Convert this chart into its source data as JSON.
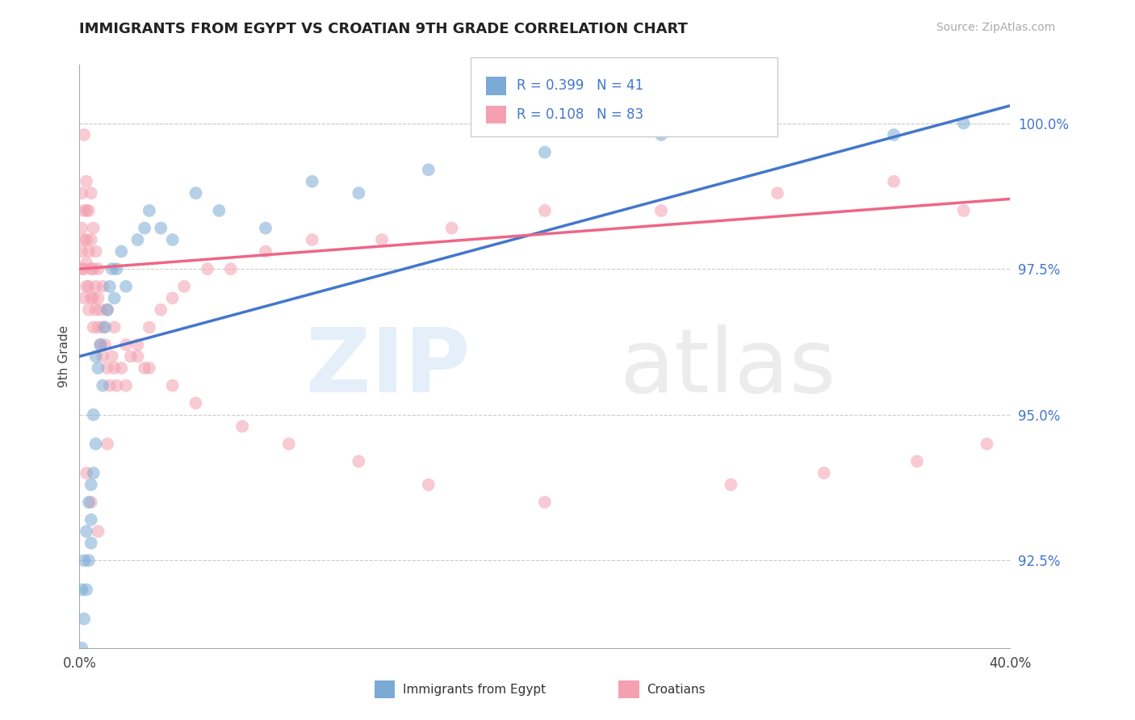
{
  "title": "IMMIGRANTS FROM EGYPT VS CROATIAN 9TH GRADE CORRELATION CHART",
  "source_text": "Source: ZipAtlas.com",
  "ylabel": "9th Grade",
  "xlim": [
    0.0,
    0.4
  ],
  "ylim": [
    0.91,
    1.01
  ],
  "xticks": [
    0.0,
    0.4
  ],
  "xticklabels": [
    "0.0%",
    "40.0%"
  ],
  "yticks": [
    0.925,
    0.95,
    0.975,
    1.0
  ],
  "yticklabels": [
    "92.5%",
    "95.0%",
    "97.5%",
    "100.0%"
  ],
  "legend_r1": "R = 0.399",
  "legend_n1": "N = 41",
  "legend_r2": "R = 0.108",
  "legend_n2": "N = 83",
  "blue_color": "#7BAAD4",
  "pink_color": "#F4A0B0",
  "trend_blue": "#4477CC",
  "trend_pink": "#EE6688",
  "blue_trend_x": [
    0.0,
    0.4
  ],
  "blue_trend_y": [
    0.96,
    1.003
  ],
  "pink_trend_x": [
    0.0,
    0.4
  ],
  "pink_trend_y": [
    0.975,
    0.987
  ],
  "blue_scatter_x": [
    0.001,
    0.001,
    0.002,
    0.002,
    0.003,
    0.003,
    0.004,
    0.004,
    0.005,
    0.005,
    0.005,
    0.006,
    0.006,
    0.007,
    0.007,
    0.008,
    0.009,
    0.01,
    0.011,
    0.012,
    0.013,
    0.014,
    0.015,
    0.016,
    0.018,
    0.02,
    0.025,
    0.028,
    0.03,
    0.035,
    0.04,
    0.05,
    0.06,
    0.08,
    0.1,
    0.12,
    0.15,
    0.2,
    0.25,
    0.35,
    0.38
  ],
  "blue_scatter_y": [
    0.91,
    0.92,
    0.915,
    0.925,
    0.92,
    0.93,
    0.925,
    0.935,
    0.928,
    0.932,
    0.938,
    0.94,
    0.95,
    0.945,
    0.96,
    0.958,
    0.962,
    0.955,
    0.965,
    0.968,
    0.972,
    0.975,
    0.97,
    0.975,
    0.978,
    0.972,
    0.98,
    0.982,
    0.985,
    0.982,
    0.98,
    0.988,
    0.985,
    0.982,
    0.99,
    0.988,
    0.992,
    0.995,
    0.998,
    0.998,
    1.0
  ],
  "pink_scatter_x": [
    0.001,
    0.001,
    0.001,
    0.002,
    0.002,
    0.002,
    0.003,
    0.003,
    0.003,
    0.003,
    0.004,
    0.004,
    0.004,
    0.005,
    0.005,
    0.005,
    0.006,
    0.006,
    0.006,
    0.007,
    0.007,
    0.008,
    0.008,
    0.009,
    0.009,
    0.01,
    0.01,
    0.011,
    0.012,
    0.013,
    0.014,
    0.015,
    0.016,
    0.018,
    0.02,
    0.022,
    0.025,
    0.028,
    0.03,
    0.035,
    0.04,
    0.045,
    0.055,
    0.065,
    0.08,
    0.1,
    0.13,
    0.16,
    0.2,
    0.25,
    0.3,
    0.35,
    0.38,
    0.001,
    0.002,
    0.003,
    0.004,
    0.005,
    0.006,
    0.007,
    0.008,
    0.01,
    0.012,
    0.015,
    0.02,
    0.025,
    0.03,
    0.04,
    0.05,
    0.07,
    0.09,
    0.12,
    0.15,
    0.2,
    0.28,
    0.32,
    0.36,
    0.39,
    0.002,
    0.003,
    0.005,
    0.008,
    0.012
  ],
  "pink_scatter_y": [
    0.975,
    0.978,
    0.982,
    0.97,
    0.975,
    0.98,
    0.972,
    0.976,
    0.98,
    0.985,
    0.968,
    0.972,
    0.978,
    0.97,
    0.975,
    0.98,
    0.965,
    0.97,
    0.975,
    0.968,
    0.972,
    0.965,
    0.97,
    0.962,
    0.968,
    0.96,
    0.965,
    0.962,
    0.958,
    0.955,
    0.96,
    0.958,
    0.955,
    0.958,
    0.955,
    0.96,
    0.962,
    0.958,
    0.965,
    0.968,
    0.97,
    0.972,
    0.975,
    0.975,
    0.978,
    0.98,
    0.98,
    0.982,
    0.985,
    0.985,
    0.988,
    0.99,
    0.985,
    0.988,
    0.985,
    0.99,
    0.985,
    0.988,
    0.982,
    0.978,
    0.975,
    0.972,
    0.968,
    0.965,
    0.962,
    0.96,
    0.958,
    0.955,
    0.952,
    0.948,
    0.945,
    0.942,
    0.938,
    0.935,
    0.938,
    0.94,
    0.942,
    0.945,
    0.998,
    0.94,
    0.935,
    0.93,
    0.945
  ]
}
